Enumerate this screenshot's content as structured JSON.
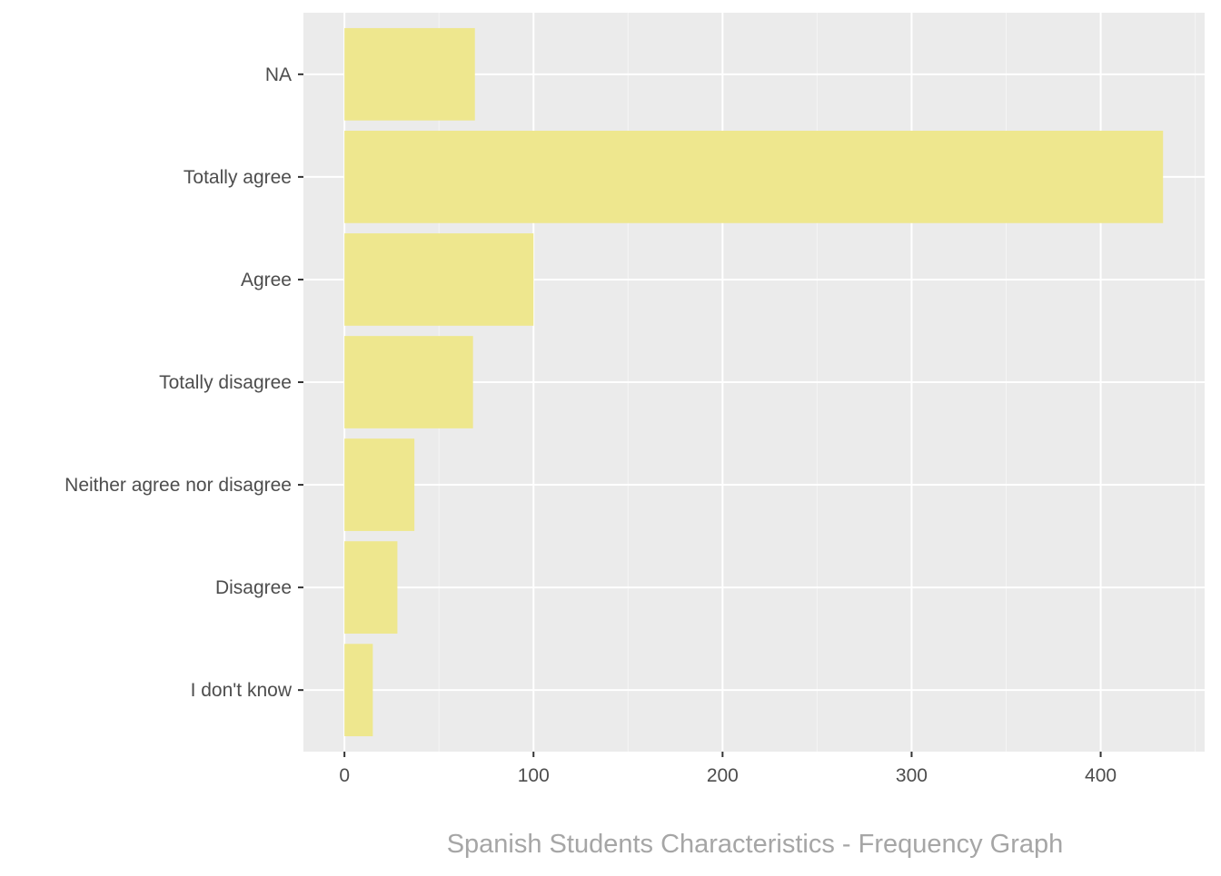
{
  "chart_data": {
    "type": "bar",
    "orientation": "horizontal",
    "categories": [
      "NA",
      "Totally agree",
      "Agree",
      "Totally disagree",
      "Neither agree nor disagree",
      "Disagree",
      "I don't know"
    ],
    "values": [
      69,
      433,
      100,
      68,
      37,
      28,
      15
    ],
    "caption": "Spanish Students Characteristics - Frequency Graph",
    "xlabel": "",
    "ylabel": "",
    "xlim": [
      -21.7,
      455
    ],
    "x_ticks": [
      0,
      100,
      200,
      300,
      400
    ],
    "x_tick_labels": [
      "0",
      "100",
      "200",
      "300",
      "400"
    ],
    "grid": true,
    "legend": "none",
    "colors": {
      "bar": "#eee78e",
      "panel_background": "#ebebeb",
      "grid_major": "#ffffff",
      "grid_minor": "#f5f5f5",
      "tick_text": "#4d4d4d",
      "caption_text": "#a6a6a6"
    }
  }
}
